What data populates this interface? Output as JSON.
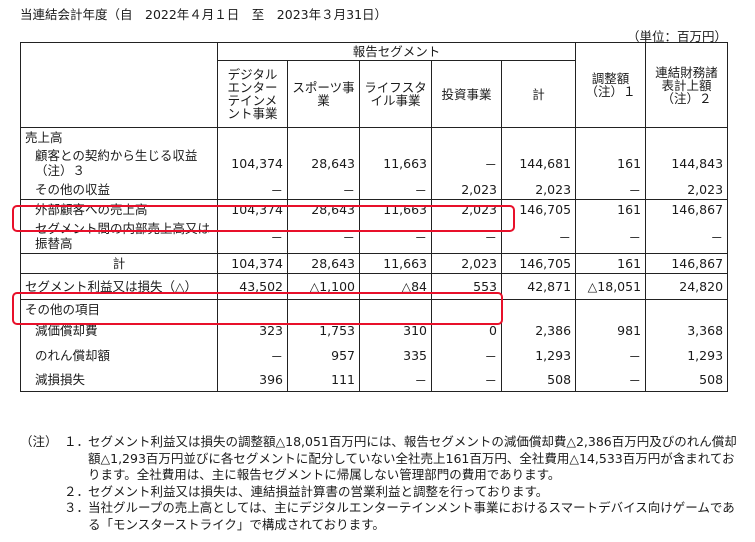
{
  "period": "当連結会計年度（自　2022年４月１日　至　2023年３月31日）",
  "unit": "（単位：百万円）",
  "header": {
    "group": "報告セグメント",
    "cols": [
      "デジタルエンターテインメント事業",
      "スポーツ事業",
      "ライフスタイル事業",
      "投資事業",
      "計"
    ],
    "adjust": "調整額（注）１",
    "consolidated": "連結財務諸表計上額（注）２"
  },
  "sections": {
    "sales": "売上高",
    "other": "その他の項目"
  },
  "rows": [
    {
      "label": "顧客との契約から生じる収益　（注）３",
      "v": [
        "104,374",
        "28,643",
        "11,663",
        "－",
        "144,681",
        "161",
        "144,843"
      ]
    },
    {
      "label": "その他の収益",
      "v": [
        "－",
        "－",
        "－",
        "2,023",
        "2,023",
        "－",
        "2,023"
      ]
    },
    {
      "label": "外部顧客への売上高",
      "v": [
        "104,374",
        "28,643",
        "11,663",
        "2,023",
        "146,705",
        "161",
        "146,867"
      ]
    },
    {
      "label": "セグメント間の内部売上高又は振替高",
      "v": [
        "－",
        "－",
        "－",
        "－",
        "－",
        "－",
        "－"
      ]
    },
    {
      "label": "計",
      "v": [
        "104,374",
        "28,643",
        "11,663",
        "2,023",
        "146,705",
        "161",
        "146,867"
      ]
    },
    {
      "label": "セグメント利益又は損失（△）",
      "v": [
        "43,502",
        "△1,100",
        "△84",
        "553",
        "42,871",
        "△18,051",
        "24,820"
      ]
    },
    {
      "label": "減価償却費",
      "v": [
        "323",
        "1,753",
        "310",
        "0",
        "2,386",
        "981",
        "3,368"
      ]
    },
    {
      "label": "のれん償却額",
      "v": [
        "－",
        "957",
        "335",
        "－",
        "1,293",
        "－",
        "1,293"
      ]
    },
    {
      "label": "減損損失",
      "v": [
        "396",
        "111",
        "－",
        "－",
        "508",
        "－",
        "508"
      ]
    }
  ],
  "notes": {
    "prefix": "（注）",
    "items": [
      {
        "n": "１．",
        "text": "セグメント利益又は損失の調整額△18,051百万円には、報告セグメントの減価償却費△2,386百万円及びのれん償却額△1,293百万円並びに各セグメントに配分していない全社売上161百万円、全社費用△14,533百万円が含まれております。全社費用は、主に報告セグメントに帰属しない管理部門の費用であります。"
      },
      {
        "n": "２．",
        "text": "セグメント利益又は損失は、連結損益計算書の営業利益と調整を行っております。"
      },
      {
        "n": "３．",
        "text": "当社グループの売上高としては、主にデジタルエンターテインメント事業におけるスマートデバイス向けゲームである「モンスターストライク」で構成されております。"
      }
    ]
  }
}
